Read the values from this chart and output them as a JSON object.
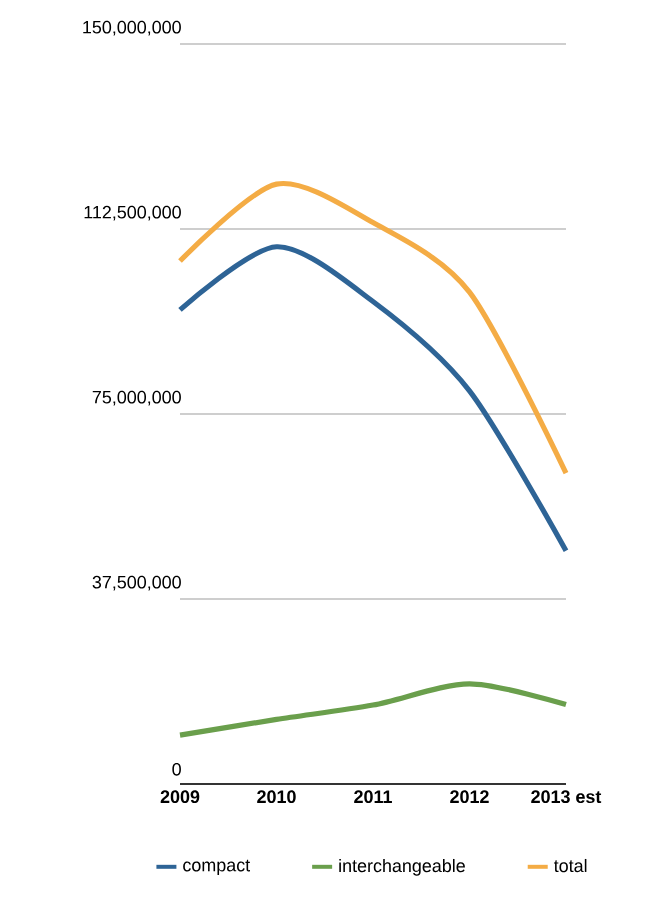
{
  "chart_data": {
    "type": "line",
    "categories": [
      "2009",
      "2010",
      "2011",
      "2012",
      "2013 est"
    ],
    "series": [
      {
        "name": "compact",
        "color": "#2e6496",
        "values": [
          96100000,
          108900000,
          97800000,
          79700000,
          47300000
        ]
      },
      {
        "name": "interchangeable",
        "color": "#6a9f4c",
        "values": [
          9900000,
          13100000,
          16000000,
          20300000,
          16100000
        ]
      },
      {
        "name": "total",
        "color": "#f4ac45",
        "values": [
          106000000,
          121600000,
          113800000,
          99700000,
          63000000
        ]
      }
    ],
    "ylim": [
      0,
      150000000
    ],
    "yticks": [
      0,
      {
        "value": 37500000,
        "label": "37,500,000"
      },
      {
        "value": 75000000,
        "label": "75,000,000"
      },
      {
        "value": 112500000,
        "label": "112,500,000"
      },
      {
        "value": 150000000,
        "label": "150,000,000"
      }
    ],
    "grid": "y",
    "legend": "bottom",
    "marker": "none",
    "line_style": "solid"
  }
}
